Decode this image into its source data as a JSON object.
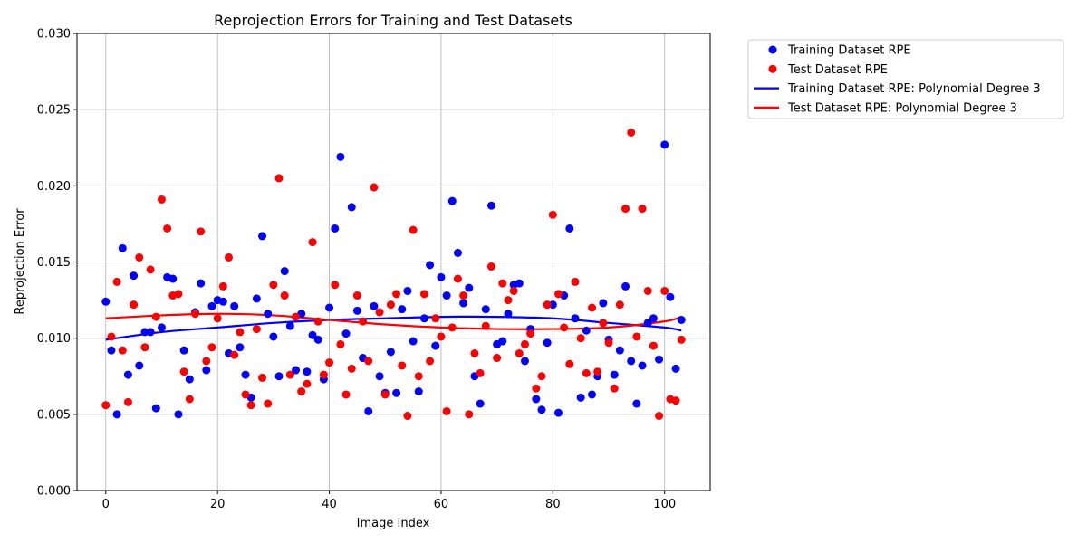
{
  "chart_data": {
    "type": "scatter",
    "title": "Reprojection Errors for Training and Test Datasets",
    "xlabel": "Image Index",
    "ylabel": "Reprojection Error",
    "xlim": [
      -5.15,
      108.15
    ],
    "ylim": [
      0.0,
      0.03
    ],
    "xticks": [
      0,
      20,
      40,
      60,
      80,
      100
    ],
    "xtick_labels": [
      "0",
      "20",
      "40",
      "60",
      "80",
      "100"
    ],
    "yticks": [
      0.0,
      0.005,
      0.01,
      0.015,
      0.02,
      0.025,
      0.03
    ],
    "ytick_labels": [
      "0.000",
      "0.005",
      "0.010",
      "0.015",
      "0.020",
      "0.025",
      "0.030"
    ],
    "grid": true,
    "legend_position": "outside right, top",
    "legend": [
      {
        "label": "Training Dataset RPE",
        "marker": "dot",
        "color": "#0000ff"
      },
      {
        "label": "Test Dataset RPE",
        "marker": "dot",
        "color": "#ff0000"
      },
      {
        "label": "Training Dataset RPE: Polynomial Degree 3",
        "marker": "line",
        "color": "#0000ff"
      },
      {
        "label": "Test Dataset RPE: Polynomial Degree 3",
        "marker": "line",
        "color": "#ff0000"
      }
    ],
    "series": [
      {
        "name": "Training Dataset RPE",
        "kind": "points",
        "color": "#0000ff",
        "x": [
          0,
          1,
          2,
          3,
          4,
          5,
          6,
          7,
          8,
          9,
          10,
          11,
          12,
          13,
          14,
          15,
          16,
          17,
          18,
          19,
          20,
          21,
          22,
          23,
          24,
          25,
          26,
          27,
          28,
          29,
          30,
          31,
          32,
          33,
          34,
          35,
          36,
          37,
          38,
          39,
          40,
          41,
          42,
          43,
          44,
          45,
          46,
          47,
          48,
          49,
          50,
          51,
          52,
          53,
          54,
          55,
          56,
          57,
          58,
          59,
          60,
          61,
          62,
          63,
          64,
          65,
          66,
          67,
          68,
          69,
          70,
          71,
          72,
          73,
          74,
          75,
          76,
          77,
          78,
          79,
          80,
          81,
          82,
          83,
          84,
          85,
          86,
          87,
          88,
          89,
          90,
          91,
          92,
          93,
          94,
          95,
          96,
          97,
          98,
          99,
          100,
          101,
          102,
          103
        ],
        "y": [
          0.0124,
          0.0092,
          0.005,
          0.0159,
          0.0076,
          0.0141,
          0.0082,
          0.0104,
          0.0104,
          0.0054,
          0.0107,
          0.014,
          0.0139,
          0.005,
          0.0092,
          0.0073,
          0.0117,
          0.0136,
          0.0079,
          0.0121,
          0.0125,
          0.0124,
          0.009,
          0.0121,
          0.0094,
          0.0076,
          0.0061,
          0.0126,
          0.0167,
          0.0116,
          0.0101,
          0.0075,
          0.0144,
          0.0108,
          0.0079,
          0.0116,
          0.0078,
          0.0102,
          0.0099,
          0.0073,
          0.012,
          0.0172,
          0.0219,
          0.0103,
          0.0186,
          0.0118,
          0.0087,
          0.0052,
          0.0121,
          0.0075,
          0.0064,
          0.0091,
          0.0064,
          0.0119,
          0.0131,
          0.0098,
          0.0065,
          0.0113,
          0.0148,
          0.0095,
          0.014,
          0.0128,
          0.019,
          0.0156,
          0.0123,
          0.0133,
          0.0075,
          0.0057,
          0.0119,
          0.0187,
          0.0096,
          0.0098,
          0.0116,
          0.0135,
          0.0136,
          0.0085,
          0.0106,
          0.006,
          0.0053,
          0.0097,
          0.0122,
          0.0051,
          0.0128,
          0.0172,
          0.0113,
          0.0061,
          0.0105,
          0.0063,
          0.0075,
          0.0123,
          0.0099,
          0.0076,
          0.0092,
          0.0134,
          0.0085,
          0.0057,
          0.0082,
          0.011,
          0.0113,
          0.0086,
          0.0227,
          0.0127,
          0.008,
          0.0112
        ]
      },
      {
        "name": "Test Dataset RPE",
        "kind": "points",
        "color": "#ff0000",
        "x": [
          0,
          1,
          2,
          3,
          4,
          5,
          6,
          7,
          8,
          9,
          10,
          11,
          12,
          13,
          14,
          15,
          16,
          17,
          18,
          19,
          20,
          21,
          22,
          23,
          24,
          25,
          26,
          27,
          28,
          29,
          30,
          31,
          32,
          33,
          34,
          35,
          36,
          37,
          38,
          39,
          40,
          41,
          42,
          43,
          44,
          45,
          46,
          47,
          48,
          49,
          50,
          51,
          52,
          53,
          54,
          55,
          56,
          57,
          58,
          59,
          60,
          61,
          62,
          63,
          64,
          65,
          66,
          67,
          68,
          69,
          70,
          71,
          72,
          73,
          74,
          75,
          76,
          77,
          78,
          79,
          80,
          81,
          82,
          83,
          84,
          85,
          86,
          87,
          88,
          89,
          90,
          91,
          92,
          93,
          94,
          95,
          96,
          97,
          98,
          99,
          100,
          101,
          102,
          103
        ],
        "y": [
          0.0056,
          0.0101,
          0.0137,
          0.0092,
          0.0058,
          0.0122,
          0.0153,
          0.0094,
          0.0145,
          0.0114,
          0.0191,
          0.0172,
          0.0128,
          0.0129,
          0.0078,
          0.006,
          0.0116,
          0.017,
          0.0085,
          0.0094,
          0.0113,
          0.0134,
          0.0153,
          0.0089,
          0.0104,
          0.0063,
          0.0056,
          0.0106,
          0.0074,
          0.0057,
          0.0135,
          0.0205,
          0.0128,
          0.0076,
          0.0114,
          0.0065,
          0.007,
          0.0163,
          0.0111,
          0.0076,
          0.0084,
          0.0135,
          0.0096,
          0.0063,
          0.008,
          0.0128,
          0.0111,
          0.0085,
          0.0199,
          0.0117,
          0.0063,
          0.0122,
          0.0129,
          0.0082,
          0.0049,
          0.0171,
          0.0075,
          0.0129,
          0.0085,
          0.0113,
          0.0101,
          0.0052,
          0.0107,
          0.0139,
          0.0128,
          0.005,
          0.009,
          0.0077,
          0.0108,
          0.0147,
          0.0087,
          0.0136,
          0.0125,
          0.0131,
          0.009,
          0.0096,
          0.0103,
          0.0067,
          0.0075,
          0.0122,
          0.0181,
          0.0129,
          0.0107,
          0.0083,
          0.0137,
          0.01,
          0.0077,
          0.012,
          0.0078,
          0.011,
          0.0097,
          0.0067,
          0.0122,
          0.0185,
          0.0235,
          0.0101,
          0.0185,
          0.0131,
          0.0095,
          0.0049,
          0.0131,
          0.006,
          0.0059,
          0.0099
        ]
      },
      {
        "name": "Training Dataset RPE: Polynomial Degree 3",
        "kind": "line",
        "color": "#0000ff",
        "x": [
          0,
          10,
          20,
          30,
          40,
          50,
          60,
          70,
          80,
          90,
          100,
          103
        ],
        "y": [
          0.0099,
          0.0104,
          0.0107,
          0.011,
          0.0112,
          0.0113,
          0.0114,
          0.0114,
          0.0113,
          0.011,
          0.0107,
          0.0105
        ]
      },
      {
        "name": "Test Dataset RPE: Polynomial Degree 3",
        "kind": "line",
        "color": "#ff0000",
        "x": [
          0,
          10,
          20,
          30,
          40,
          50,
          60,
          70,
          80,
          90,
          100,
          103
        ],
        "y": [
          0.0113,
          0.0115,
          0.0116,
          0.0115,
          0.0112,
          0.0109,
          0.0107,
          0.0106,
          0.0106,
          0.0107,
          0.0111,
          0.0114
        ]
      }
    ]
  }
}
